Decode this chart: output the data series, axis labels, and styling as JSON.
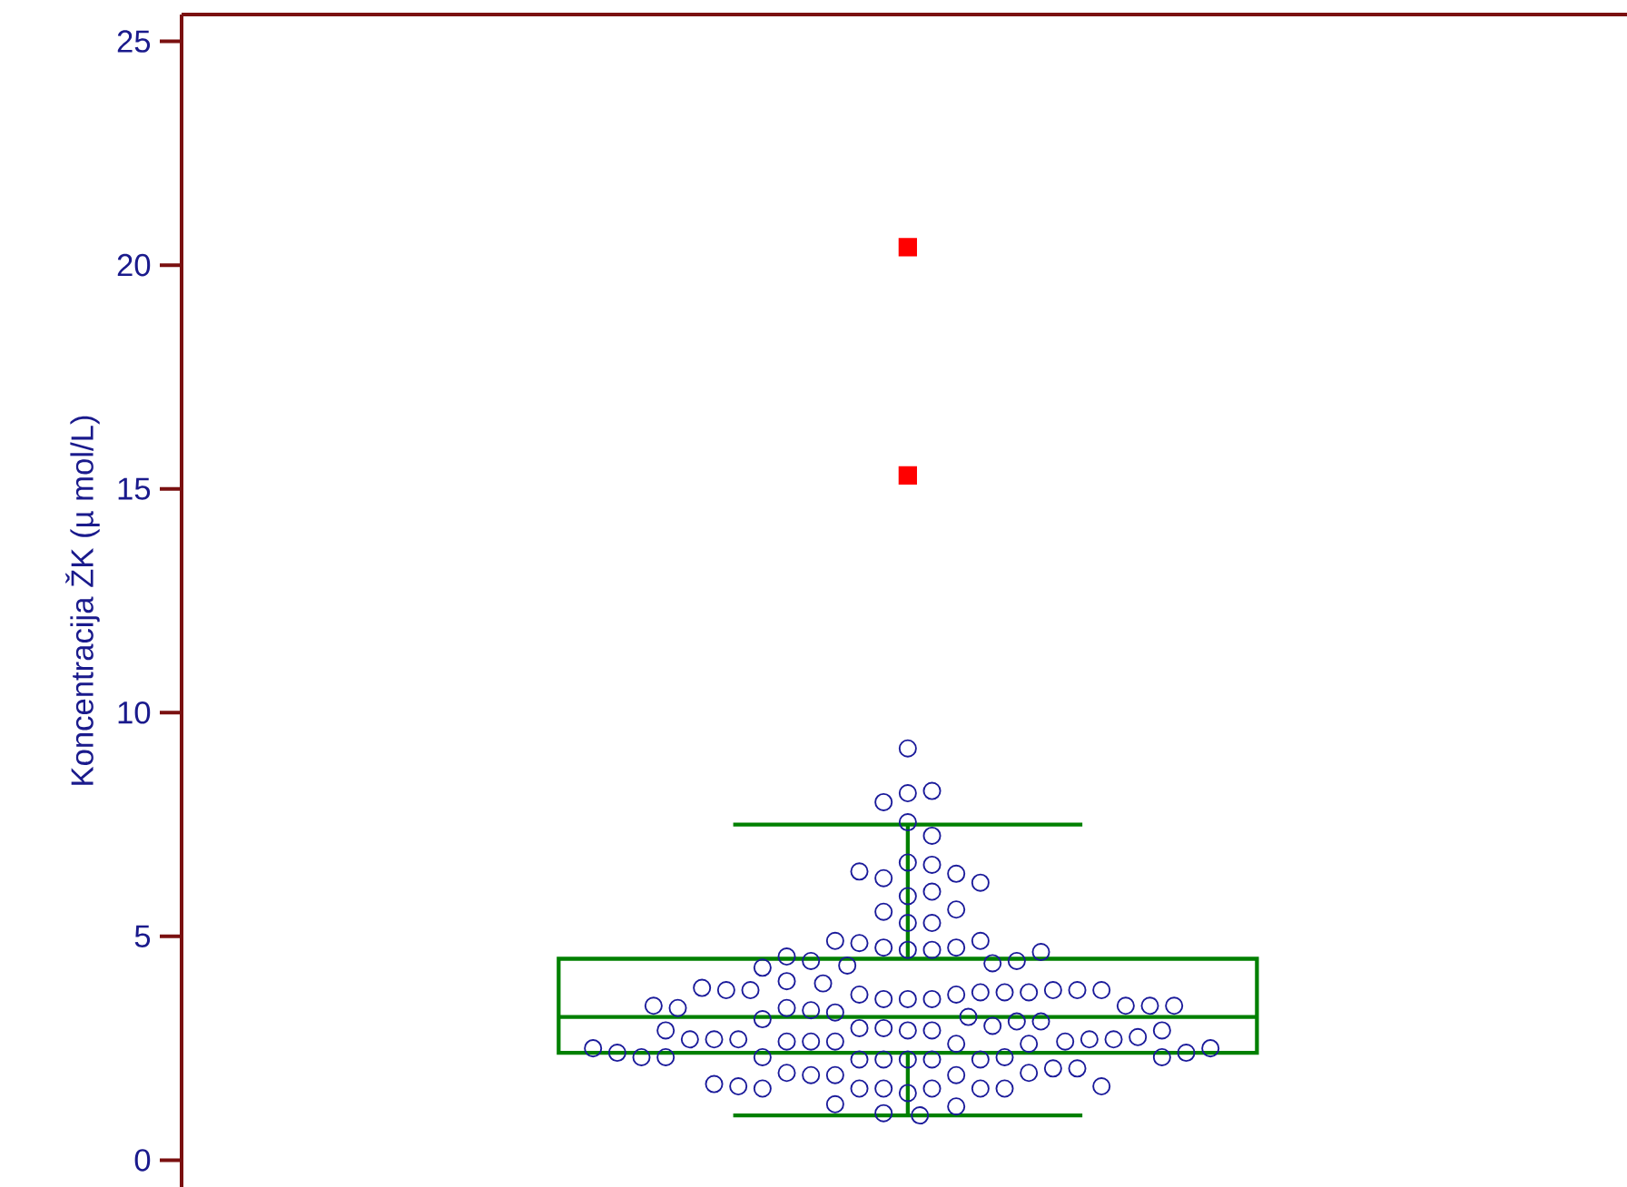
{
  "chart_data": {
    "type": "box",
    "ylabel": "Koncentracija ŽK (µ mol/L)",
    "categories": [
      null
    ],
    "ylim": [
      -0.6,
      25.6
    ],
    "yticks": [
      0,
      5,
      10,
      15,
      20,
      25
    ],
    "tick_labels": "y",
    "grid": false,
    "series": [
      {
        "color": "#008000",
        "boxes": [
          {
            "low": 1.0,
            "q1": 2.4,
            "median": 3.2,
            "q3": 4.5,
            "high": 7.5,
            "outliers": [
              15.3,
              20.4
            ]
          }
        ]
      },
      {
        "type": "scatter",
        "color": "#1a1a9a",
        "marker": "circle",
        "x": [
          null,
          null,
          null,
          null,
          null,
          null,
          null,
          null,
          null,
          null,
          null,
          null,
          null,
          null,
          null,
          null,
          null,
          null,
          null,
          null,
          null,
          null,
          null,
          null,
          null,
          null,
          null,
          null,
          null,
          null,
          null,
          null,
          null,
          null,
          null,
          null,
          null,
          null,
          null,
          null,
          null,
          null,
          null,
          null,
          null,
          null,
          null,
          null,
          null,
          null,
          null,
          null,
          null,
          null,
          null,
          null,
          null,
          null,
          null,
          null,
          null,
          null,
          null,
          null,
          null,
          null,
          null,
          null,
          null,
          null,
          null,
          null,
          null,
          null,
          null,
          null,
          null,
          null,
          null,
          null,
          null,
          null,
          null,
          null,
          null,
          null,
          null,
          null,
          null,
          null,
          null,
          null,
          null,
          null,
          null,
          null,
          null,
          null,
          null,
          null,
          null,
          null,
          null,
          null,
          null,
          null,
          null,
          null,
          null,
          null,
          null,
          null,
          null,
          null
        ],
        "values": [
          9.2,
          8.2,
          8.25,
          8.0,
          7.55,
          7.25,
          6.65,
          6.6,
          6.3,
          6.4,
          6.45,
          6.2,
          5.9,
          6.0,
          5.55,
          5.6,
          5.3,
          5.3,
          4.7,
          4.7,
          4.75,
          4.75,
          4.85,
          4.9,
          4.9,
          4.35,
          4.4,
          4.45,
          4.45,
          4.55,
          4.65,
          4.3,
          3.6,
          3.6,
          3.6,
          3.7,
          3.7,
          3.75,
          3.95,
          3.75,
          4.0,
          3.75,
          3.8,
          3.8,
          3.8,
          3.8,
          3.8,
          3.85,
          3.3,
          3.35,
          3.4,
          3.45,
          3.4,
          3.45,
          3.45,
          3.45,
          3.2,
          2.9,
          2.9,
          2.95,
          2.95,
          3.0,
          3.1,
          3.1,
          3.15,
          2.6,
          2.65,
          2.65,
          2.65,
          2.65,
          2.7,
          2.7,
          2.6,
          2.7,
          2.7,
          2.7,
          2.75,
          2.9,
          2.9,
          2.25,
          2.25,
          2.25,
          2.25,
          2.25,
          2.3,
          2.3,
          2.3,
          2.3,
          2.3,
          2.4,
          2.4,
          2.5,
          2.5,
          1.9,
          1.9,
          1.9,
          1.95,
          1.95,
          2.05,
          2.05,
          1.5,
          1.6,
          1.6,
          1.6,
          1.6,
          1.6,
          1.6,
          1.65,
          1.65,
          1.7,
          1.2,
          1.25,
          1.0,
          1.05
        ]
      }
    ]
  }
}
